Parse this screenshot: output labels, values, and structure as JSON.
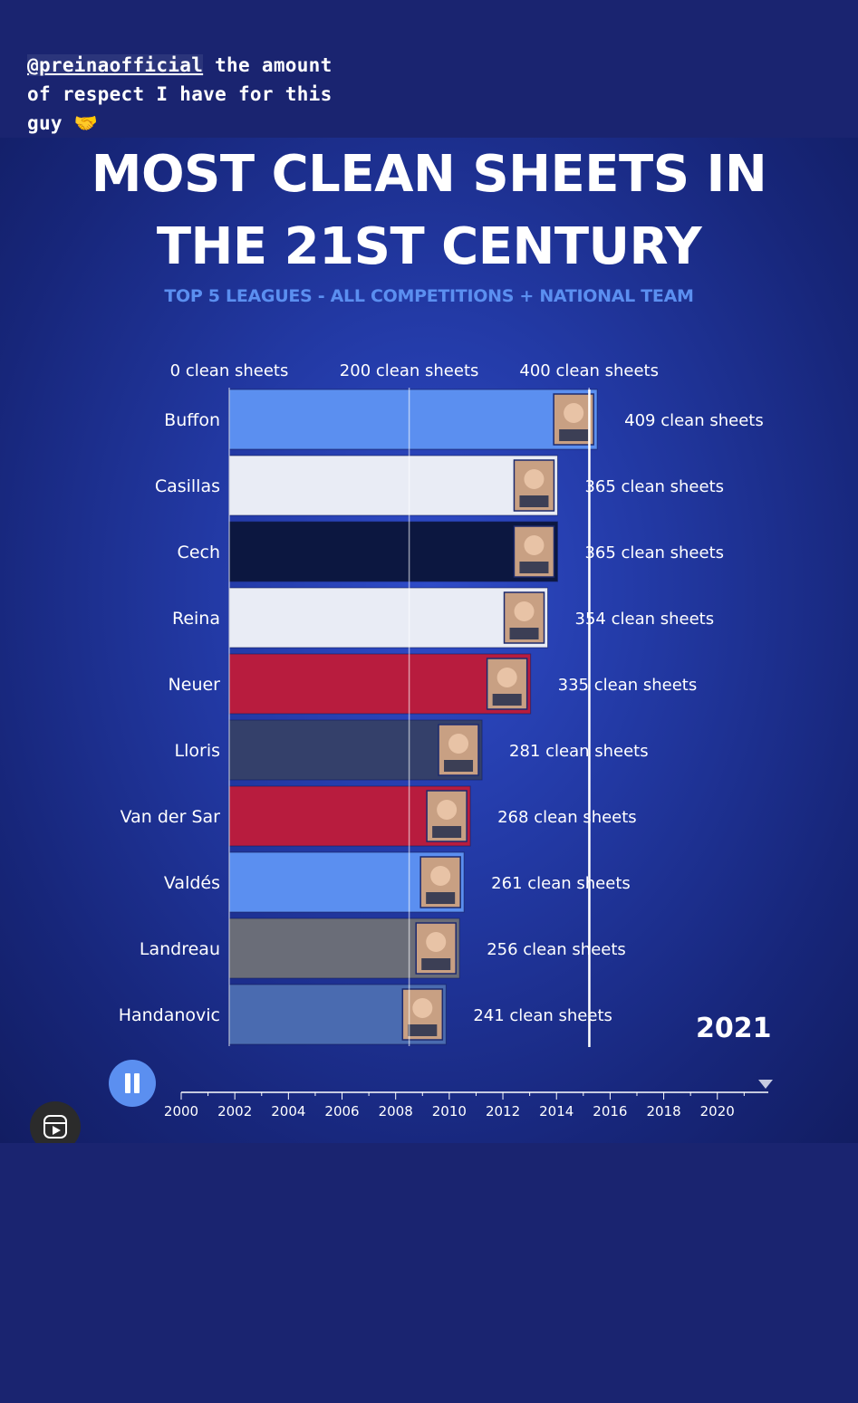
{
  "caption": {
    "mention": "@preinaofficial",
    "text_line1": " the amount",
    "text_line2": "of respect I have for this",
    "text_line3": "guy",
    "emoji": "🤝"
  },
  "icons": {
    "pause": "pause-icon",
    "reels": "reels-icon",
    "timeline_marker": "triangle-down-icon"
  },
  "colors": {
    "page_background": "#1a2470",
    "subtitle": "#5b8ff0",
    "playhead": "#ffffff"
  },
  "chart_data": {
    "type": "bar",
    "orientation": "horizontal",
    "title_line1": "MOST CLEAN SHEETS IN",
    "title_line2": "THE 21ST CENTURY",
    "subtitle": "TOP 5 LEAGUES - ALL COMPETITIONS + NATIONAL TEAM",
    "xlim": [
      0,
      410
    ],
    "xticks": [
      0,
      200,
      400
    ],
    "xtick_labels": [
      "0 clean sheets",
      "200 clean sheets",
      "400 clean sheets"
    ],
    "gridlines": true,
    "categories": [
      "Buffon",
      "Casillas",
      "Cech",
      "Reina",
      "Neuer",
      "Lloris",
      "Van der Sar",
      "Valdés",
      "Landreau",
      "Handanovic"
    ],
    "values": [
      409,
      365,
      365,
      354,
      335,
      281,
      268,
      261,
      256,
      241
    ],
    "value_labels": [
      "409 clean sheets",
      "365 clean sheets",
      "365 clean sheets",
      "354 clean sheets",
      "335 clean sheets",
      "281 clean sheets",
      "268 clean sheets",
      "261 clean sheets",
      "256 clean sheets",
      "241 clean sheets"
    ],
    "bar_colors": [
      "#5b8ff0",
      "#e9ecf5",
      "#0c1740",
      "#e9ecf5",
      "#b81c3e",
      "#34406a",
      "#b81c3e",
      "#5b8ff0",
      "#6a6d78",
      "#4a6bb0"
    ],
    "highlight_value": 365,
    "year": "2021",
    "timeline": {
      "labels": [
        "2000",
        "2002",
        "2004",
        "2006",
        "2008",
        "2010",
        "2012",
        "2014",
        "2016",
        "2018",
        "2020"
      ],
      "current": 2021
    }
  }
}
